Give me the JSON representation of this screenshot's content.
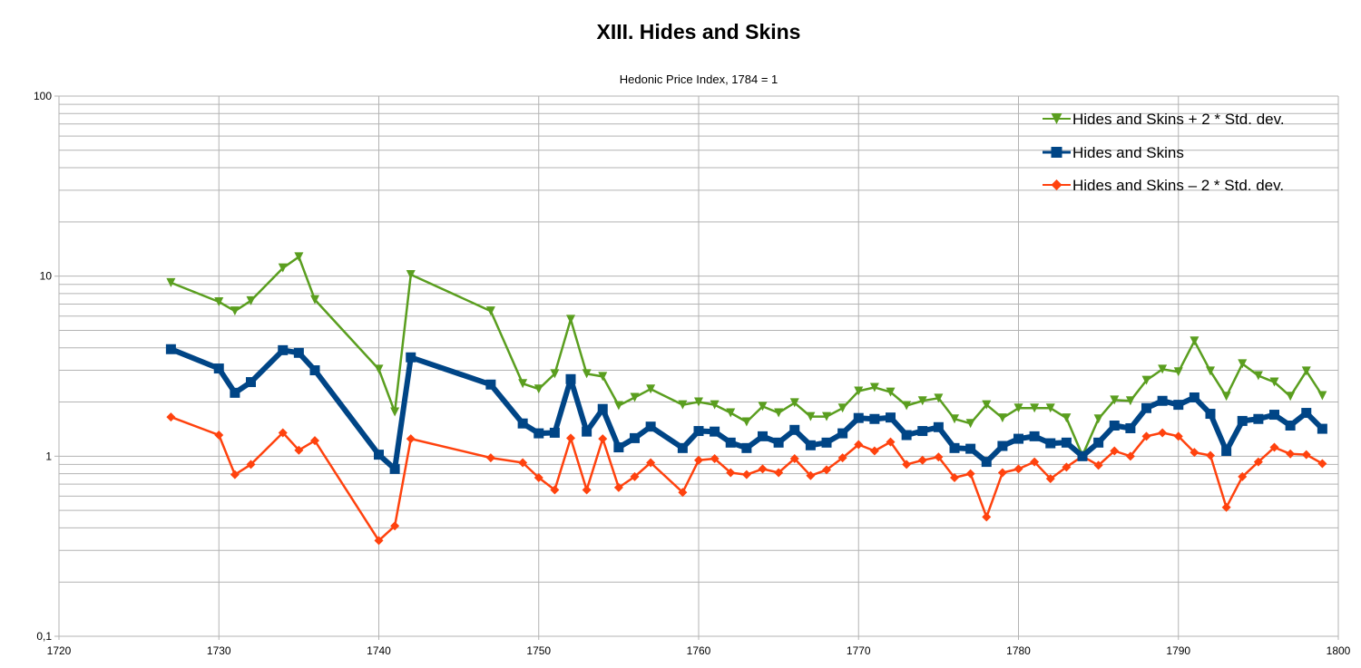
{
  "chart_data": {
    "type": "line",
    "title": "XIII. Hides and Skins",
    "subtitle": "Hedonic Price Index, 1784 = 1",
    "xlabel": "",
    "ylabel": "",
    "yscale": "log",
    "xlim": [
      1720,
      1800
    ],
    "ylim": [
      0.1,
      100
    ],
    "x_ticks": [
      "1720",
      "1730",
      "1740",
      "1750",
      "1760",
      "1770",
      "1780",
      "1790",
      "1800"
    ],
    "y_ticks": [
      "100",
      "10",
      "1",
      "0,1"
    ],
    "grid": true,
    "legend_position": "top-right",
    "x": [
      1727,
      1730,
      1731,
      1732,
      1734,
      1735,
      1736,
      1740,
      1741,
      1742,
      1747,
      1749,
      1750,
      1751,
      1752,
      1753,
      1754,
      1755,
      1756,
      1757,
      1759,
      1760,
      1761,
      1762,
      1763,
      1764,
      1765,
      1766,
      1767,
      1768,
      1769,
      1770,
      1771,
      1772,
      1773,
      1774,
      1775,
      1776,
      1777,
      1778,
      1779,
      1780,
      1781,
      1782,
      1783,
      1784,
      1785,
      1786,
      1787,
      1788,
      1789,
      1790,
      1791,
      1792,
      1793,
      1794,
      1795,
      1796,
      1797,
      1798,
      1799
    ],
    "series": [
      {
        "name": "Hides and Skins + 2 * Std. dev.",
        "color": "#5a9e1f",
        "marker": "triangle-down",
        "values": [
          9.2,
          7.2,
          6.4,
          7.3,
          11.1,
          12.8,
          7.4,
          3.04,
          1.76,
          10.2,
          6.4,
          2.53,
          2.36,
          2.87,
          5.75,
          2.87,
          2.77,
          1.91,
          2.12,
          2.36,
          1.93,
          2.0,
          1.93,
          1.74,
          1.55,
          1.89,
          1.74,
          1.98,
          1.66,
          1.66,
          1.85,
          2.3,
          2.41,
          2.27,
          1.91,
          2.03,
          2.1,
          1.61,
          1.52,
          1.93,
          1.63,
          1.85,
          1.85,
          1.85,
          1.63,
          1.01,
          1.61,
          2.05,
          2.03,
          2.64,
          3.04,
          2.94,
          4.36,
          2.97,
          2.15,
          3.26,
          2.8,
          2.58,
          2.15,
          2.97,
          2.17
        ]
      },
      {
        "name": "Hides and Skins",
        "color": "#004586",
        "marker": "square",
        "values": [
          3.93,
          3.07,
          2.25,
          2.58,
          3.88,
          3.75,
          3.0,
          1.02,
          0.85,
          3.54,
          2.5,
          1.52,
          1.34,
          1.35,
          2.68,
          1.37,
          1.83,
          1.12,
          1.26,
          1.46,
          1.11,
          1.38,
          1.37,
          1.19,
          1.11,
          1.29,
          1.19,
          1.4,
          1.15,
          1.19,
          1.34,
          1.63,
          1.61,
          1.64,
          1.31,
          1.38,
          1.45,
          1.11,
          1.1,
          0.93,
          1.14,
          1.25,
          1.29,
          1.18,
          1.19,
          1.0,
          1.19,
          1.48,
          1.43,
          1.85,
          2.03,
          1.93,
          2.12,
          1.72,
          1.07,
          1.57,
          1.61,
          1.7,
          1.48,
          1.74,
          1.42
        ]
      },
      {
        "name": "Hides and Skins – 2 * Std. dev.",
        "color": "#ff420e",
        "marker": "diamond",
        "values": [
          1.65,
          1.31,
          0.79,
          0.9,
          1.35,
          1.08,
          1.22,
          0.34,
          0.41,
          1.25,
          0.98,
          0.92,
          0.76,
          0.65,
          1.26,
          0.65,
          1.25,
          0.67,
          0.77,
          0.92,
          0.63,
          0.95,
          0.97,
          0.81,
          0.79,
          0.85,
          0.81,
          0.97,
          0.78,
          0.84,
          0.98,
          1.16,
          1.07,
          1.2,
          0.9,
          0.95,
          0.99,
          0.76,
          0.8,
          0.46,
          0.81,
          0.85,
          0.93,
          0.75,
          0.87,
          1.0,
          0.89,
          1.07,
          1.0,
          1.29,
          1.35,
          1.29,
          1.05,
          1.01,
          0.52,
          0.77,
          0.93,
          1.12,
          1.03,
          1.02,
          0.91
        ]
      }
    ]
  }
}
